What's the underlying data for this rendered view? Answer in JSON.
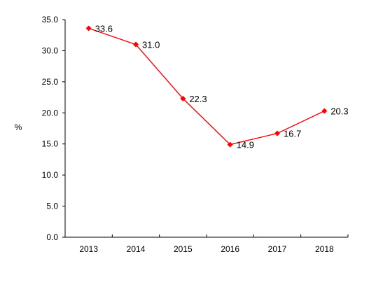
{
  "chart_data": {
    "type": "line",
    "title": "",
    "xlabel": "",
    "ylabel": "%",
    "categories": [
      "2013",
      "2014",
      "2015",
      "2016",
      "2017",
      "2018"
    ],
    "series": [
      {
        "name": "",
        "values": [
          33.6,
          31.0,
          22.3,
          14.9,
          16.7,
          20.3
        ],
        "color": "#ff0000",
        "marker": "diamond"
      }
    ],
    "data_labels": [
      "33.6",
      "31.0",
      "22.3",
      "14.9",
      "16.7",
      "20.3"
    ],
    "y_ticks": [
      "0.0",
      "5.0",
      "10.0",
      "15.0",
      "20.0",
      "25.0",
      "30.0",
      "35.0"
    ],
    "ylim": [
      0,
      35
    ],
    "grid": false,
    "legend": "none"
  }
}
